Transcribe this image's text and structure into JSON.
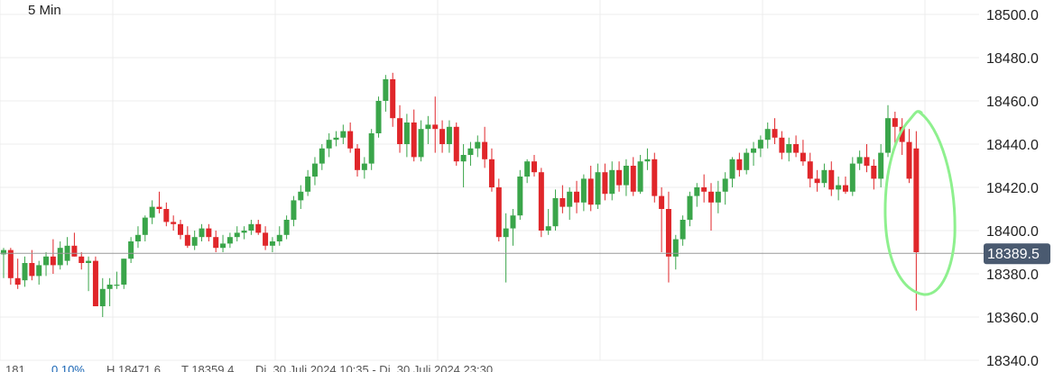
{
  "chart_data": {
    "type": "candlestick",
    "timeframe": "5 Min",
    "y_ticks": [
      "18500.0",
      "18480.0",
      "18460.0",
      "18440.0",
      "18420.0",
      "18400.0",
      "18380.0",
      "18360.0",
      "18340.0"
    ],
    "ylim": [
      18340,
      18500
    ],
    "grid": true,
    "last_price": 18389.5,
    "last_price_label": "18389.5",
    "colors": {
      "up": "#3aa54a",
      "down": "#e0262a",
      "highlight": "#8ef08e",
      "badge": "#4a5a70"
    },
    "candles": [
      [
        18389,
        18392,
        18378,
        18391
      ],
      [
        18391,
        18392,
        18375,
        18378
      ],
      [
        18378,
        18387,
        18373,
        18375
      ],
      [
        18377,
        18388,
        18374,
        18385
      ],
      [
        18385,
        18391,
        18377,
        18379
      ],
      [
        18379,
        18386,
        18375,
        18384
      ],
      [
        18384,
        18390,
        18379,
        18388
      ],
      [
        18388,
        18396,
        18380,
        18384
      ],
      [
        18384,
        18395,
        18382,
        18392
      ],
      [
        18386,
        18397,
        18384,
        18393
      ],
      [
        18393,
        18399,
        18388,
        18388
      ],
      [
        18388,
        18390,
        18382,
        18385
      ],
      [
        18385,
        18388,
        18372,
        18386
      ],
      [
        18386,
        18388,
        18366,
        18365
      ],
      [
        18365,
        18378,
        18360,
        18373
      ],
      [
        18373,
        18378,
        18365,
        18375
      ],
      [
        18375,
        18381,
        18373,
        18375
      ],
      [
        18375,
        18387,
        18373,
        18387
      ],
      [
        18387,
        18397,
        18385,
        18395
      ],
      [
        18395,
        18402,
        18392,
        18398
      ],
      [
        18398,
        18407,
        18395,
        18406
      ],
      [
        18406,
        18414,
        18403,
        18411
      ],
      [
        18411,
        18418,
        18408,
        18410
      ],
      [
        18410,
        18413,
        18402,
        18404
      ],
      [
        18404,
        18407,
        18400,
        18403
      ],
      [
        18403,
        18405,
        18396,
        18398
      ],
      [
        18398,
        18402,
        18392,
        18393
      ],
      [
        18393,
        18400,
        18391,
        18397
      ],
      [
        18397,
        18403,
        18395,
        18401
      ],
      [
        18401,
        18403,
        18395,
        18397
      ],
      [
        18397,
        18400,
        18390,
        18392
      ],
      [
        18392,
        18398,
        18390,
        18394
      ],
      [
        18394,
        18399,
        18392,
        18397
      ],
      [
        18397,
        18402,
        18395,
        18399
      ],
      [
        18399,
        18402,
        18396,
        18400
      ],
      [
        18400,
        18405,
        18398,
        18403
      ],
      [
        18403,
        18405,
        18398,
        18399
      ],
      [
        18399,
        18402,
        18391,
        18393
      ],
      [
        18393,
        18397,
        18390,
        18395
      ],
      [
        18395,
        18402,
        18393,
        18398
      ],
      [
        18398,
        18407,
        18396,
        18405
      ],
      [
        18405,
        18416,
        18402,
        18414
      ],
      [
        18414,
        18421,
        18410,
        18418
      ],
      [
        18418,
        18428,
        18416,
        18425
      ],
      [
        18425,
        18434,
        18421,
        18431
      ],
      [
        18431,
        18440,
        18428,
        18438
      ],
      [
        18438,
        18445,
        18434,
        18442
      ],
      [
        18442,
        18446,
        18439,
        18443
      ],
      [
        18443,
        18449,
        18440,
        18446
      ],
      [
        18446,
        18450,
        18436,
        18438
      ],
      [
        18438,
        18440,
        18425,
        18428
      ],
      [
        18428,
        18434,
        18424,
        18431
      ],
      [
        18431,
        18447,
        18428,
        18445
      ],
      [
        18445,
        18462,
        18443,
        18460
      ],
      [
        18460,
        18472,
        18455,
        18470
      ],
      [
        18470,
        18473,
        18448,
        18452
      ],
      [
        18452,
        18458,
        18436,
        18440
      ],
      [
        18440,
        18454,
        18434,
        18450
      ],
      [
        18450,
        18456,
        18432,
        18434
      ],
      [
        18434,
        18451,
        18432,
        18447
      ],
      [
        18447,
        18453,
        18440,
        18449
      ],
      [
        18449,
        18462,
        18436,
        18447
      ],
      [
        18447,
        18451,
        18436,
        18440
      ],
      [
        18440,
        18451,
        18436,
        18448
      ],
      [
        18448,
        18450,
        18430,
        18432
      ],
      [
        18432,
        18440,
        18420,
        18435
      ],
      [
        18435,
        18441,
        18430,
        18438
      ],
      [
        18438,
        18444,
        18434,
        18441
      ],
      [
        18441,
        18448,
        18429,
        18433
      ],
      [
        18433,
        18438,
        18418,
        18420
      ],
      [
        18420,
        18424,
        18395,
        18397
      ],
      [
        18397,
        18408,
        18376,
        18401
      ],
      [
        18401,
        18410,
        18393,
        18407
      ],
      [
        18407,
        18428,
        18405,
        18425
      ],
      [
        18425,
        18433,
        18422,
        18432
      ],
      [
        18432,
        18435,
        18425,
        18427
      ],
      [
        18427,
        18429,
        18397,
        18400
      ],
      [
        18400,
        18410,
        18398,
        18402
      ],
      [
        18402,
        18419,
        18400,
        18415
      ],
      [
        18415,
        18421,
        18408,
        18411
      ],
      [
        18411,
        18420,
        18405,
        18418
      ],
      [
        18418,
        18423,
        18408,
        18413
      ],
      [
        18413,
        18426,
        18409,
        18424
      ],
      [
        18424,
        18430,
        18409,
        18412
      ],
      [
        18412,
        18431,
        18410,
        18427
      ],
      [
        18427,
        18431,
        18414,
        18417
      ],
      [
        18417,
        18432,
        18414,
        18428
      ],
      [
        18428,
        18432,
        18418,
        18421
      ],
      [
        18421,
        18433,
        18416,
        18430
      ],
      [
        18430,
        18434,
        18416,
        18418
      ],
      [
        18418,
        18435,
        18417,
        18432
      ],
      [
        18432,
        18438,
        18428,
        18433
      ],
      [
        18433,
        18436,
        18413,
        18416
      ],
      [
        18416,
        18420,
        18390,
        18410
      ],
      [
        18410,
        18418,
        18376,
        18388
      ],
      [
        18388,
        18398,
        18382,
        18396
      ],
      [
        18396,
        18407,
        18393,
        18405
      ],
      [
        18405,
        18418,
        18402,
        18416
      ],
      [
        18416,
        18422,
        18411,
        18420
      ],
      [
        18420,
        18426,
        18413,
        18418
      ],
      [
        18418,
        18422,
        18400,
        18413
      ],
      [
        18413,
        18423,
        18408,
        18418
      ],
      [
        18418,
        18427,
        18412,
        18424
      ],
      [
        18424,
        18434,
        18420,
        18433
      ],
      [
        18433,
        18436,
        18425,
        18428
      ],
      [
        18428,
        18438,
        18426,
        18436
      ],
      [
        18436,
        18441,
        18430,
        18438
      ],
      [
        18438,
        18444,
        18434,
        18442
      ],
      [
        18442,
        18450,
        18438,
        18447
      ],
      [
        18447,
        18452,
        18440,
        18443
      ],
      [
        18443,
        18446,
        18433,
        18436
      ],
      [
        18436,
        18443,
        18432,
        18440
      ],
      [
        18440,
        18444,
        18434,
        18436
      ],
      [
        18436,
        18442,
        18430,
        18432
      ],
      [
        18432,
        18436,
        18420,
        18424
      ],
      [
        18424,
        18428,
        18418,
        18422
      ],
      [
        18422,
        18431,
        18420,
        18428
      ],
      [
        18428,
        18432,
        18416,
        18419
      ],
      [
        18419,
        18425,
        18414,
        18421
      ],
      [
        18421,
        18425,
        18417,
        18418
      ],
      [
        18418,
        18434,
        18416,
        18431
      ],
      [
        18431,
        18437,
        18428,
        18434
      ],
      [
        18434,
        18440,
        18427,
        18430
      ],
      [
        18430,
        18433,
        18419,
        18424
      ],
      [
        18424,
        18440,
        18420,
        18436
      ],
      [
        18436,
        18458,
        18434,
        18452
      ],
      [
        18452,
        18455,
        18440,
        18448
      ],
      [
        18448,
        18452,
        18435,
        18441
      ],
      [
        18441,
        18447,
        18422,
        18424
      ],
      [
        18438,
        18446,
        18363,
        18390
      ]
    ],
    "annotation": "green hand-drawn ellipse around the final sharp down candle"
  },
  "stats": {
    "count": "181",
    "change_pct": "0.10%",
    "high": "H 18471.6",
    "low": "T 18359.4",
    "range": "Di. 30 Juli 2024 10:35 - Di. 30 Juli 2024 23:30"
  }
}
